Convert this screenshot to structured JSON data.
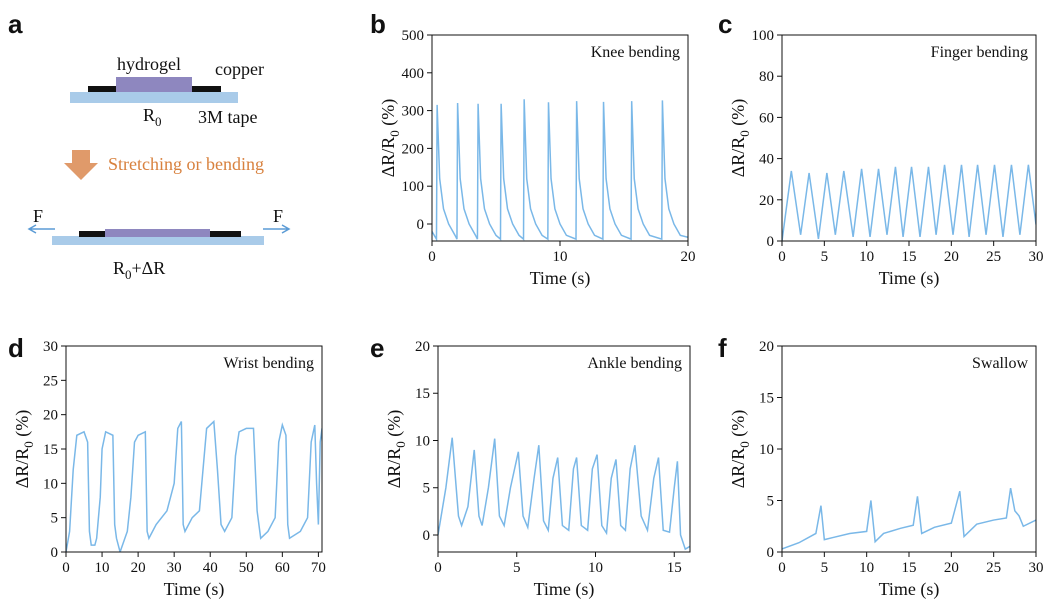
{
  "diagram": {
    "panel": "a",
    "hydrogel": "hydrogel",
    "copper": "copper",
    "r0": [
      "R",
      "0"
    ],
    "tape": "3M tape",
    "action": "Stretching or bending",
    "force": "F",
    "r_change": [
      "R",
      "0",
      "+ΔR"
    ]
  },
  "chart_data": [
    {
      "type": "line",
      "panel": "b",
      "title": "Knee bending",
      "xlabel": "Time (s)",
      "ylabel": [
        "ΔR/R",
        "0",
        " (%)"
      ],
      "color": "#7ab8e8",
      "xlim": [
        0,
        20
      ],
      "xticks": [
        0,
        10,
        20
      ],
      "ylim": [
        -45,
        500
      ],
      "yticks": [
        0,
        100,
        200,
        300,
        400,
        500
      ],
      "x": [
        0,
        0.35,
        0.4,
        0.6,
        0.9,
        1.3,
        1.8,
        1.95,
        2.0,
        2.2,
        2.5,
        2.9,
        3.4,
        3.55,
        3.6,
        3.8,
        4.1,
        4.5,
        5.0,
        5.35,
        5.4,
        5.6,
        5.9,
        6.3,
        6.8,
        7.15,
        7.2,
        7.4,
        7.7,
        8.1,
        8.6,
        9.05,
        9.1,
        9.3,
        9.6,
        10.0,
        10.5,
        11.25,
        11.3,
        11.5,
        11.8,
        12.2,
        12.7,
        13.35,
        13.4,
        13.6,
        13.9,
        14.3,
        14.8,
        15.55,
        15.6,
        15.8,
        16.1,
        16.5,
        17.0,
        17.95,
        18.0,
        18.2,
        18.5,
        18.9,
        19.4,
        20
      ],
      "values": [
        -20,
        -40,
        315,
        120,
        40,
        0,
        -30,
        -40,
        320,
        120,
        40,
        0,
        -30,
        -40,
        318,
        120,
        40,
        0,
        -30,
        -40,
        318,
        120,
        40,
        0,
        -30,
        -40,
        330,
        120,
        40,
        0,
        -30,
        -40,
        322,
        120,
        40,
        0,
        -30,
        -40,
        325,
        120,
        40,
        0,
        -30,
        -40,
        323,
        120,
        40,
        0,
        -30,
        -40,
        325,
        120,
        40,
        0,
        -30,
        -40,
        327,
        120,
        40,
        0,
        -30,
        -35
      ]
    },
    {
      "type": "line",
      "panel": "c",
      "title": "Finger bending",
      "xlabel": "Time (s)",
      "ylabel": [
        "ΔR/R",
        "0",
        " (%)"
      ],
      "color": "#7ab8e8",
      "xlim": [
        0,
        30
      ],
      "xticks": [
        0,
        5,
        10,
        15,
        20,
        25,
        30
      ],
      "ylim": [
        0,
        100
      ],
      "yticks": [
        0,
        20,
        40,
        60,
        80,
        100
      ],
      "x": [
        0,
        1.1,
        2.2,
        3.2,
        4.3,
        5.3,
        6.3,
        7.3,
        8.4,
        9.4,
        10.4,
        11.4,
        12.4,
        13.4,
        14.3,
        15.3,
        16.3,
        17.3,
        18.2,
        19.2,
        20.2,
        21.2,
        22.1,
        23.1,
        24.1,
        25.1,
        26.1,
        27.1,
        28.1,
        29.1,
        30
      ],
      "values": [
        0,
        34,
        3,
        33,
        1,
        33,
        3,
        34,
        2,
        35,
        2,
        35,
        3,
        36,
        2,
        36,
        2,
        36,
        3,
        37,
        3,
        37,
        2,
        37,
        3,
        37,
        2,
        37,
        3,
        37,
        8
      ]
    },
    {
      "type": "line",
      "panel": "d",
      "title": "Wrist bending",
      "xlabel": "Time (s)",
      "ylabel": [
        "ΔR/R",
        "0",
        " (%)"
      ],
      "color": "#7ab8e8",
      "xlim": [
        0,
        71
      ],
      "xticks": [
        0,
        10,
        20,
        30,
        40,
        50,
        60,
        70
      ],
      "ylim": [
        0,
        30
      ],
      "yticks": [
        0,
        5,
        10,
        15,
        20,
        25,
        30
      ],
      "x": [
        0,
        1,
        2,
        3,
        5,
        6,
        6.5,
        7,
        8,
        8.5,
        9.5,
        10,
        11,
        13,
        13.5,
        14,
        15,
        17,
        18,
        19,
        20,
        22,
        22.5,
        23,
        25,
        28,
        30,
        31,
        32,
        32.5,
        33,
        35,
        37,
        38,
        39,
        41,
        42,
        43,
        44,
        46,
        47,
        48,
        50,
        52,
        53,
        54,
        56,
        58,
        59,
        60,
        61,
        61.5,
        62,
        65,
        67,
        68,
        69,
        69.5,
        70,
        70.5,
        71
      ],
      "values": [
        0,
        3,
        12,
        17,
        17.5,
        16,
        3,
        1,
        1,
        2,
        8,
        15,
        17.5,
        17,
        4,
        2,
        0,
        3,
        8,
        16,
        17,
        17.5,
        3,
        2,
        4,
        6,
        10,
        18,
        19,
        4,
        3,
        5,
        6,
        12,
        18,
        19,
        12,
        4,
        3,
        5,
        14,
        17.5,
        18,
        18,
        6,
        2,
        3,
        5,
        16,
        18.5,
        17,
        4,
        2,
        3,
        5,
        16,
        18.5,
        10,
        4,
        16,
        18
      ]
    },
    {
      "type": "line",
      "panel": "e",
      "title": "Ankle bending",
      "xlabel": "Time (s)",
      "ylabel": [
        "ΔR/R",
        "0",
        " (%)"
      ],
      "color": "#7ab8e8",
      "xlim": [
        0,
        16
      ],
      "xticks": [
        0,
        5,
        10,
        15
      ],
      "ylim": [
        -1.8,
        20
      ],
      "yticks": [
        0,
        5,
        10,
        15,
        20
      ],
      "x": [
        0,
        0.5,
        0.9,
        1.3,
        1.5,
        1.9,
        2.3,
        2.6,
        2.8,
        3.2,
        3.6,
        3.9,
        4.2,
        4.6,
        5.1,
        5.4,
        5.7,
        6.1,
        6.4,
        6.7,
        7.0,
        7.3,
        7.6,
        7.9,
        8.3,
        8.6,
        8.8,
        9.1,
        9.5,
        9.8,
        10.1,
        10.4,
        10.7,
        11.0,
        11.3,
        11.6,
        11.9,
        12.2,
        12.5,
        12.9,
        13.3,
        13.7,
        14.0,
        14.3,
        14.7,
        15.0,
        15.2,
        15.4,
        15.7,
        16
      ],
      "values": [
        0,
        5,
        10.3,
        2,
        1,
        3,
        9,
        2,
        1,
        5,
        10.2,
        2,
        1,
        5,
        8.8,
        2,
        0.8,
        6,
        9.5,
        1.5,
        0.5,
        6,
        8.2,
        1,
        0.5,
        7,
        8.2,
        1,
        0.5,
        7,
        8.5,
        1,
        0.2,
        6,
        8,
        1,
        0.5,
        7,
        9.5,
        2,
        0.5,
        6,
        8.2,
        0.5,
        0.3,
        5,
        7.8,
        0,
        -1.5,
        -1.2
      ]
    },
    {
      "type": "line",
      "panel": "f",
      "title": "Swallow",
      "xlabel": "Time (s)",
      "ylabel": [
        "ΔR/R",
        "0",
        " (%)"
      ],
      "color": "#7ab8e8",
      "xlim": [
        0,
        30
      ],
      "xticks": [
        0,
        5,
        10,
        15,
        20,
        25,
        30
      ],
      "ylim": [
        0,
        20
      ],
      "yticks": [
        0,
        5,
        10,
        15,
        20
      ],
      "x": [
        0,
        2,
        4,
        4.6,
        5,
        6,
        8,
        10,
        10.5,
        11,
        12,
        14,
        15.5,
        16,
        16.5,
        18,
        20,
        21,
        21.5,
        23,
        25,
        26.5,
        27,
        27.5,
        28,
        28.5,
        30
      ],
      "values": [
        0.3,
        0.9,
        1.8,
        4.5,
        1.2,
        1.4,
        1.8,
        2,
        5,
        1,
        1.8,
        2.3,
        2.6,
        5.4,
        1.8,
        2.4,
        2.8,
        5.9,
        1.5,
        2.7,
        3.1,
        3.3,
        6.2,
        4,
        3.5,
        2.5,
        3.1
      ]
    }
  ]
}
